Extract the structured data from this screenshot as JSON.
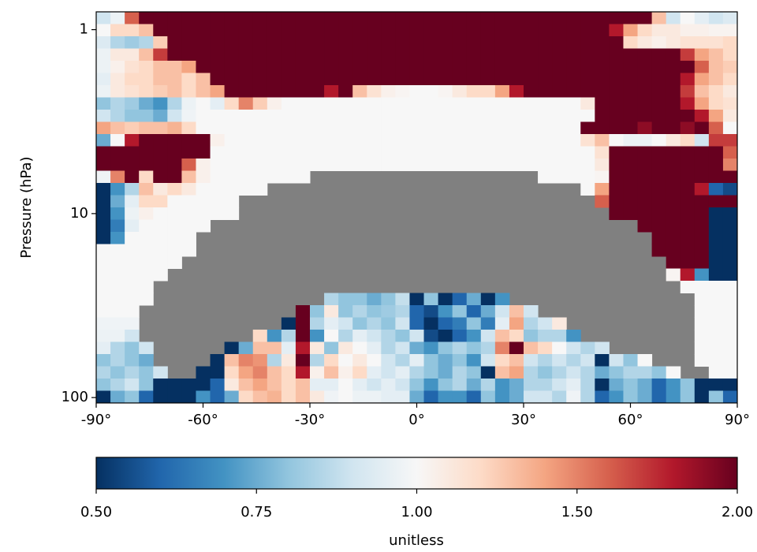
{
  "chart_data": {
    "type": "heatmap",
    "ylabel": "Pressure (hPa)",
    "colorbar_label": "unitless",
    "xlim": [
      -90,
      90
    ],
    "xticks": [
      {
        "value": -90,
        "label": "-90°"
      },
      {
        "value": -60,
        "label": "-60°"
      },
      {
        "value": -30,
        "label": "-30°"
      },
      {
        "value": 0,
        "label": "0°"
      },
      {
        "value": 30,
        "label": "30°"
      },
      {
        "value": 60,
        "label": "60°"
      },
      {
        "value": 90,
        "label": "90°"
      }
    ],
    "ylim": [
      0.8,
      107
    ],
    "yinvert": true,
    "ylog": true,
    "yticks": [
      1,
      10,
      100
    ],
    "clim": [
      0.5,
      2
    ],
    "cmid": 1,
    "cticks": [
      {
        "value": 0.5,
        "label": "0.50"
      },
      {
        "value": 0.75,
        "label": "0.75"
      },
      {
        "value": 1,
        "label": "1.00"
      },
      {
        "value": 1.5,
        "label": "1.50"
      },
      {
        "value": 2,
        "label": "2.00"
      }
    ],
    "colormap": [
      "#053061",
      "#2166ac",
      "#4393c3",
      "#92c5de",
      "#d1e5f0",
      "#f7f7f7",
      "#fddbc7",
      "#f4a582",
      "#d6604d",
      "#b2182b",
      "#67001f"
    ],
    "nan_color": "#808080",
    "z": [
      [
        0.9,
        0.97,
        1.6,
        2,
        2,
        2,
        2,
        2,
        2,
        2,
        2,
        2,
        2,
        2,
        2,
        2,
        2,
        2,
        2,
        2,
        2,
        2,
        2,
        2,
        2,
        2,
        2,
        2,
        2,
        2,
        2,
        2,
        2,
        2,
        2,
        2,
        2,
        2,
        2,
        1.3,
        0.9,
        1,
        0.95,
        0.9,
        0.93
      ],
      [
        1,
        1.2,
        1.2,
        1.3,
        2,
        2,
        2,
        2,
        2,
        2,
        2,
        2,
        2,
        2,
        2,
        2,
        2,
        2,
        2,
        2,
        2,
        2,
        2,
        2,
        2,
        2,
        2,
        2,
        2,
        2,
        2,
        2,
        2,
        2,
        2,
        2,
        1.8,
        1.4,
        1.2,
        1.1,
        1.1,
        1.05,
        1.05,
        1.03,
        1.03
      ],
      [
        0.93,
        0.85,
        0.82,
        0.85,
        1.25,
        2,
        2,
        2,
        2,
        2,
        2,
        2,
        2,
        2,
        2,
        2,
        2,
        2,
        2,
        2,
        2,
        2,
        2,
        2,
        2,
        2,
        2,
        2,
        2,
        2,
        2,
        2,
        2,
        2,
        2,
        2,
        2,
        1.2,
        1.1,
        1.05,
        1.1,
        1.15,
        1.15,
        1.15,
        1.2
      ],
      [
        0.97,
        1.1,
        1.1,
        1.3,
        1.7,
        2,
        2,
        2,
        2,
        2,
        2,
        2,
        2,
        2,
        2,
        2,
        2,
        2,
        2,
        2,
        2,
        2,
        2,
        2,
        2,
        2,
        2,
        2,
        2,
        2,
        2,
        2,
        2,
        2,
        2,
        2,
        2,
        2,
        2,
        2,
        2,
        1.7,
        1.4,
        1.3,
        1.2
      ],
      [
        0.97,
        1.05,
        1.15,
        1.2,
        1.3,
        1.3,
        1.4,
        2,
        2,
        2,
        2,
        2,
        2,
        2,
        2,
        2,
        2,
        2,
        2,
        2,
        2,
        2,
        2,
        2,
        2,
        2,
        2,
        2,
        2,
        2,
        2,
        2,
        2,
        2,
        2,
        2,
        2,
        2,
        2,
        2,
        2,
        2,
        1.6,
        1.3,
        1.25
      ],
      [
        0.95,
        1.1,
        1.2,
        1.2,
        1.3,
        1.3,
        1.2,
        1.3,
        2,
        2,
        2,
        2,
        2,
        2,
        2,
        2,
        2,
        2,
        2,
        2,
        2,
        2,
        2,
        2,
        2,
        2,
        2,
        2,
        2,
        2,
        2,
        2,
        2,
        2,
        2,
        2,
        2,
        2,
        2,
        2,
        2,
        1.8,
        1.4,
        1.3,
        1.2
      ],
      [
        0.97,
        1.1,
        1.15,
        1.2,
        1.25,
        1.3,
        1.2,
        1.3,
        1.4,
        2,
        2,
        2,
        2,
        2,
        2,
        2,
        1.8,
        2,
        1.3,
        1.15,
        1.05,
        1.02,
        1,
        1,
        1.02,
        1.1,
        1.2,
        1.2,
        1.4,
        1.8,
        2,
        2,
        2,
        2,
        2,
        2,
        2,
        2,
        2,
        2,
        2,
        1.7,
        1.3,
        1.2,
        1.1
      ],
      [
        0.8,
        0.85,
        0.82,
        0.75,
        0.7,
        0.85,
        0.97,
        1,
        0.95,
        1.2,
        1.5,
        1.25,
        1.05,
        1,
        1,
        1,
        1,
        1,
        1,
        1,
        1,
        1,
        1,
        1,
        1,
        1,
        1,
        1,
        1,
        1,
        1,
        1,
        1,
        1,
        1.1,
        2,
        2,
        2,
        2,
        2,
        2,
        1.8,
        1.4,
        1.2,
        1.15
      ],
      [
        0.9,
        0.85,
        0.8,
        0.8,
        0.75,
        0.9,
        0.98,
        1,
        1,
        1,
        1,
        1,
        1,
        1,
        1,
        1,
        1,
        1,
        1,
        1,
        1,
        1,
        1,
        1,
        1,
        1,
        1,
        1,
        1,
        1,
        1,
        1,
        1,
        1,
        1,
        2,
        2,
        2,
        2,
        2,
        2,
        2,
        1.8,
        1.4,
        1.1
      ],
      [
        1.4,
        1.3,
        1.25,
        1.3,
        1.3,
        1.35,
        1.2,
        1,
        1,
        1,
        1,
        1,
        1,
        1,
        1,
        1,
        1,
        1,
        1,
        1,
        1,
        1,
        1,
        1,
        1,
        1,
        1,
        1,
        1,
        1,
        1,
        1,
        1,
        1,
        2,
        2,
        2,
        2,
        1.9,
        2,
        2,
        1.9,
        2,
        1.6,
        1
      ],
      [
        0.75,
        1,
        1.8,
        2,
        2,
        2,
        2,
        2,
        1.05,
        1,
        1,
        1,
        1,
        1,
        1,
        1,
        1,
        1,
        1,
        1,
        1,
        1,
        1,
        1,
        1,
        1,
        1,
        1,
        1,
        1,
        1,
        1,
        1,
        1,
        1.15,
        1.3,
        1,
        0.97,
        0.97,
        1,
        1.1,
        1.2,
        0.9,
        1.7,
        1.7
      ],
      [
        2,
        2,
        2,
        2,
        2,
        2,
        2,
        2,
        1,
        1,
        1,
        1,
        1,
        1,
        1,
        1,
        1,
        1,
        1,
        1,
        1,
        1,
        1,
        1,
        1,
        1,
        1,
        1,
        1,
        1,
        1,
        1,
        1,
        1,
        1,
        1.15,
        2,
        2,
        2,
        2,
        2,
        2,
        2,
        2,
        1.6
      ],
      [
        2,
        2,
        2,
        2,
        2,
        2,
        1.6,
        1.05,
        1,
        1,
        1,
        1,
        1,
        1,
        1,
        1,
        1,
        1,
        1,
        1,
        1,
        1,
        1,
        1,
        1,
        1,
        1,
        1,
        1,
        1,
        1,
        1,
        1,
        1,
        1,
        1.1,
        2,
        2,
        2,
        2,
        2,
        2,
        2,
        2,
        1.5
      ],
      [
        0.98,
        1.5,
        2,
        1.2,
        2,
        2,
        1.3,
        1.05,
        1,
        1,
        1,
        1,
        1,
        1,
        1,
        null,
        null,
        null,
        null,
        null,
        null,
        null,
        null,
        null,
        null,
        null,
        null,
        null,
        null,
        null,
        null,
        1,
        1,
        1,
        1,
        1.02,
        2,
        2,
        2,
        2,
        2,
        2,
        2,
        2,
        2
      ],
      [
        0.5,
        0.7,
        0.85,
        1.3,
        1.1,
        1.2,
        1.1,
        1,
        1,
        1,
        1,
        1,
        null,
        null,
        null,
        null,
        null,
        null,
        null,
        null,
        null,
        null,
        null,
        null,
        null,
        null,
        null,
        null,
        null,
        null,
        null,
        null,
        null,
        null,
        1,
        1.4,
        2,
        2,
        2,
        2,
        2,
        2,
        1.8,
        0.6,
        0.55
      ],
      [
        0.5,
        0.75,
        0.95,
        1.2,
        1.2,
        1,
        1,
        1,
        1,
        1,
        null,
        null,
        null,
        null,
        null,
        null,
        null,
        null,
        null,
        null,
        null,
        null,
        null,
        null,
        null,
        null,
        null,
        null,
        null,
        null,
        null,
        null,
        null,
        null,
        null,
        1.6,
        2,
        2,
        2,
        2,
        2,
        2,
        2,
        2,
        2
      ],
      [
        0.5,
        0.7,
        0.97,
        1.05,
        1,
        1,
        1,
        1,
        1,
        1,
        null,
        null,
        null,
        null,
        null,
        null,
        null,
        null,
        null,
        null,
        null,
        null,
        null,
        null,
        null,
        null,
        null,
        null,
        null,
        null,
        null,
        null,
        null,
        null,
        null,
        null,
        2,
        2,
        2,
        2,
        2,
        2,
        2,
        0.5,
        0.5
      ],
      [
        0.5,
        0.65,
        0.95,
        1,
        1,
        1,
        1,
        1,
        null,
        null,
        null,
        null,
        null,
        null,
        null,
        null,
        null,
        null,
        null,
        null,
        null,
        null,
        null,
        null,
        null,
        null,
        null,
        null,
        null,
        null,
        null,
        null,
        null,
        null,
        null,
        null,
        null,
        null,
        2,
        2,
        2,
        2,
        2,
        0.5,
        0.5
      ],
      [
        0.5,
        0.7,
        1,
        1,
        1,
        1,
        1,
        null,
        null,
        null,
        null,
        null,
        null,
        null,
        null,
        null,
        null,
        null,
        null,
        null,
        null,
        null,
        null,
        null,
        null,
        null,
        null,
        null,
        null,
        null,
        null,
        null,
        null,
        null,
        null,
        null,
        null,
        null,
        null,
        2,
        2,
        2,
        2,
        0.5,
        0.5
      ],
      [
        1,
        1,
        1,
        1,
        1,
        1,
        1,
        null,
        null,
        null,
        null,
        null,
        null,
        null,
        null,
        null,
        null,
        null,
        null,
        null,
        null,
        null,
        null,
        null,
        null,
        null,
        null,
        null,
        null,
        null,
        null,
        null,
        null,
        null,
        null,
        null,
        null,
        null,
        null,
        2,
        2,
        2,
        2,
        0.5,
        0.5
      ],
      [
        1,
        1,
        1,
        1,
        1,
        1,
        null,
        null,
        null,
        null,
        null,
        null,
        null,
        null,
        null,
        null,
        null,
        null,
        null,
        null,
        null,
        null,
        null,
        null,
        null,
        null,
        null,
        null,
        null,
        null,
        null,
        null,
        null,
        null,
        null,
        null,
        null,
        null,
        null,
        null,
        2,
        2,
        2,
        0.5,
        0.5
      ],
      [
        1,
        1,
        1,
        1,
        1,
        null,
        null,
        null,
        null,
        null,
        null,
        null,
        null,
        null,
        null,
        null,
        null,
        null,
        null,
        null,
        null,
        null,
        null,
        null,
        null,
        null,
        null,
        null,
        null,
        null,
        null,
        null,
        null,
        null,
        null,
        null,
        null,
        null,
        null,
        null,
        1.02,
        1.8,
        0.7,
        0.5,
        0.5
      ],
      [
        1,
        1,
        1,
        1,
        null,
        null,
        null,
        null,
        null,
        null,
        null,
        null,
        null,
        null,
        null,
        null,
        null,
        null,
        null,
        null,
        null,
        null,
        null,
        null,
        null,
        null,
        null,
        null,
        null,
        null,
        null,
        null,
        null,
        null,
        null,
        null,
        null,
        null,
        null,
        null,
        null,
        1,
        1,
        1,
        1
      ],
      [
        1,
        1,
        1,
        1,
        null,
        null,
        null,
        null,
        null,
        null,
        null,
        null,
        null,
        null,
        null,
        null,
        0.85,
        0.8,
        0.8,
        0.75,
        0.8,
        0.88,
        0.5,
        0.8,
        0.5,
        0.6,
        0.75,
        0.5,
        0.7,
        null,
        null,
        null,
        null,
        null,
        null,
        null,
        null,
        null,
        null,
        null,
        null,
        null,
        1,
        1,
        1
      ],
      [
        1,
        1,
        1,
        null,
        null,
        null,
        null,
        null,
        null,
        null,
        null,
        null,
        null,
        null,
        2,
        0.8,
        1.1,
        0.8,
        0.85,
        0.8,
        0.82,
        0.85,
        0.6,
        0.55,
        0.7,
        0.8,
        0.6,
        0.75,
        0.9,
        1.3,
        0.9,
        null,
        null,
        null,
        null,
        null,
        null,
        null,
        null,
        null,
        null,
        null,
        1,
        1,
        1
      ],
      [
        0.98,
        0.98,
        0.98,
        null,
        null,
        null,
        null,
        null,
        null,
        null,
        null,
        null,
        null,
        0.5,
        2,
        0.85,
        0.95,
        0.9,
        0.8,
        0.85,
        0.8,
        0.9,
        0.6,
        0.5,
        0.6,
        0.65,
        0.8,
        0.65,
        0.95,
        1.4,
        0.85,
        0.9,
        1.1,
        null,
        null,
        null,
        null,
        null,
        null,
        null,
        null,
        null,
        1,
        1,
        1
      ],
      [
        0.97,
        0.97,
        0.9,
        null,
        null,
        null,
        null,
        null,
        null,
        null,
        null,
        1.2,
        0.7,
        0.85,
        2,
        0.7,
        1,
        0.85,
        0.95,
        0.9,
        0.85,
        0.8,
        0.9,
        0.55,
        0.5,
        0.6,
        0.7,
        0.9,
        1.3,
        1.2,
        0.8,
        0.85,
        0.85,
        0.7,
        null,
        null,
        null,
        null,
        null,
        null,
        null,
        null,
        1,
        1,
        1
      ],
      [
        0.95,
        0.85,
        0.8,
        0.9,
        null,
        null,
        null,
        null,
        null,
        0.5,
        0.75,
        1.3,
        1.3,
        0.95,
        1.8,
        1.1,
        0.8,
        1.1,
        1,
        0.95,
        0.85,
        0.9,
        0.75,
        0.7,
        0.8,
        0.85,
        0.8,
        0.85,
        1.5,
        2,
        1.3,
        1.2,
        1,
        0.9,
        0.85,
        0.9,
        null,
        null,
        null,
        null,
        null,
        null,
        1,
        1,
        1
      ],
      [
        0.8,
        0.85,
        0.8,
        0.75,
        null,
        null,
        null,
        null,
        0.5,
        1.3,
        1.5,
        1.45,
        0.85,
        1.1,
        2,
        0.85,
        1.2,
        1,
        1.1,
        1,
        0.9,
        0.85,
        0.95,
        0.8,
        0.75,
        0.8,
        0.7,
        0.9,
        1.2,
        1.3,
        0.9,
        0.85,
        0.9,
        0.85,
        0.9,
        0.5,
        0.9,
        0.8,
        1,
        null,
        null,
        null,
        1,
        1,
        1
      ],
      [
        0.85,
        0.8,
        0.85,
        0.8,
        0.9,
        null,
        null,
        0.5,
        0.5,
        1.2,
        1.4,
        1.5,
        1.3,
        1.2,
        1.8,
        1.05,
        1.3,
        1.05,
        1.2,
        0.95,
        0.9,
        0.95,
        0.85,
        0.8,
        0.75,
        0.85,
        0.8,
        0.5,
        1.3,
        1.4,
        0.85,
        0.8,
        0.85,
        0.9,
        0.85,
        0.75,
        0.8,
        0.85,
        0.85,
        0.8,
        1,
        null,
        null,
        1,
        1
      ],
      [
        0.8,
        0.85,
        0.9,
        0.8,
        0.5,
        0.5,
        0.5,
        0.5,
        0.6,
        1.1,
        1.3,
        1.4,
        1.3,
        1.2,
        1.3,
        0.95,
        0.95,
        1,
        0.95,
        0.9,
        0.95,
        0.9,
        0.8,
        0.7,
        0.8,
        0.85,
        0.75,
        0.85,
        0.7,
        0.75,
        0.85,
        0.85,
        0.9,
        0.95,
        0.85,
        0.5,
        0.75,
        0.8,
        0.75,
        0.6,
        0.7,
        0.8,
        0.5,
        0.5,
        0.5
      ],
      [
        0.5,
        0.75,
        0.8,
        0.6,
        0.5,
        0.5,
        0.5,
        0.7,
        0.6,
        0.75,
        1.2,
        1.3,
        1.35,
        1.2,
        1.3,
        1.1,
        0.98,
        1,
        0.97,
        0.97,
        0.95,
        0.95,
        0.75,
        0.6,
        0.7,
        0.7,
        0.6,
        0.8,
        0.7,
        0.75,
        0.9,
        0.9,
        0.85,
        0.98,
        0.85,
        0.6,
        0.7,
        0.8,
        0.75,
        0.6,
        0.7,
        0.8,
        0.5,
        0.8,
        0.6
      ]
    ]
  }
}
